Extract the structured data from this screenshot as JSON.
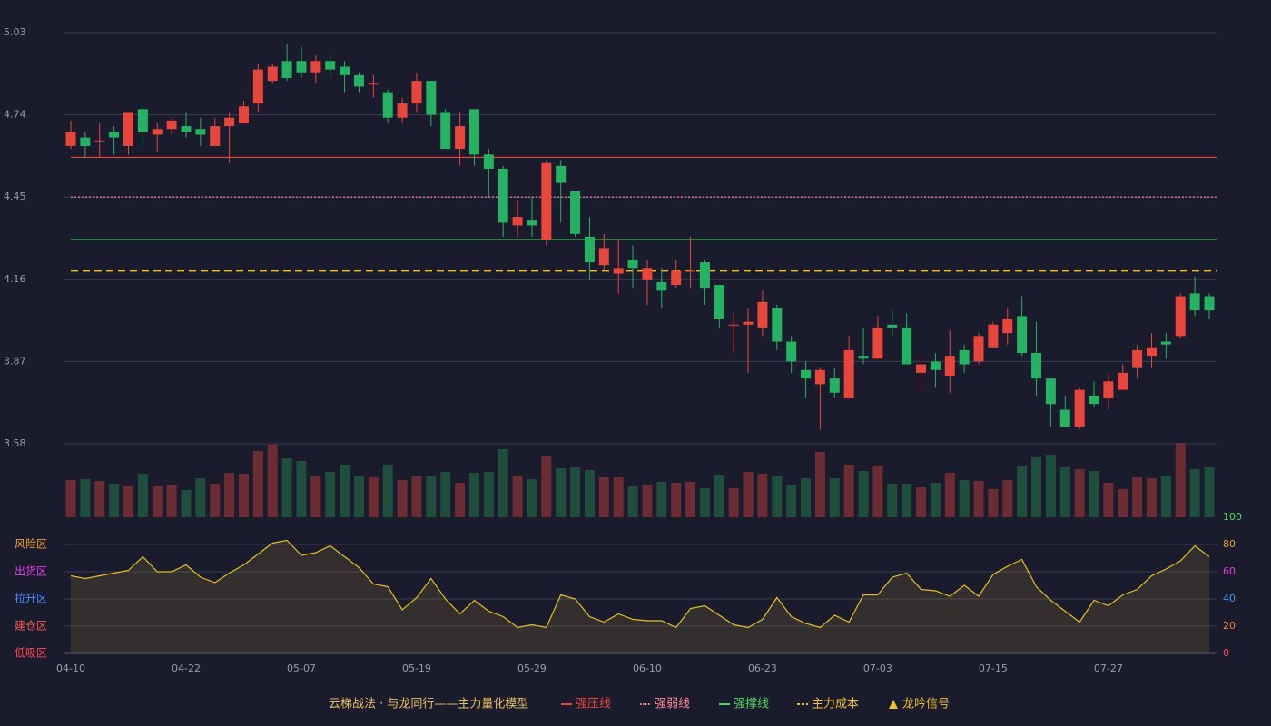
{
  "chart_data": {
    "type": "candlestick",
    "x": [
      "04-10",
      null,
      null,
      null,
      null,
      null,
      null,
      null,
      "04-22",
      null,
      null,
      null,
      null,
      null,
      null,
      null,
      "05-07",
      null,
      null,
      null,
      null,
      null,
      null,
      null,
      "05-19",
      null,
      null,
      null,
      null,
      null,
      null,
      null,
      "05-29",
      null,
      null,
      null,
      null,
      null,
      null,
      null,
      "06-10",
      null,
      null,
      null,
      null,
      null,
      null,
      null,
      "06-23",
      null,
      null,
      null,
      null,
      null,
      null,
      null,
      "07-03",
      null,
      null,
      null,
      null,
      null,
      null,
      null,
      "07-15",
      null,
      null,
      null,
      null,
      null,
      null,
      null,
      "07-27",
      null,
      null,
      null,
      null,
      null,
      null,
      null
    ],
    "open": [
      4.63,
      4.66,
      4.65,
      4.68,
      4.63,
      4.76,
      4.67,
      4.69,
      4.7,
      4.69,
      4.63,
      4.7,
      4.71,
      4.78,
      4.86,
      4.93,
      4.93,
      4.89,
      4.93,
      4.91,
      4.88,
      4.85,
      4.82,
      4.73,
      4.78,
      4.86,
      4.75,
      4.62,
      4.76,
      4.6,
      4.55,
      4.35,
      4.37,
      4.3,
      4.56,
      4.47,
      4.31,
      4.21,
      4.18,
      4.23,
      4.16,
      4.15,
      4.14,
      4.19,
      4.22,
      4.14,
      4.0,
      4.0,
      3.99,
      4.06,
      3.94,
      3.84,
      3.79,
      3.81,
      3.74,
      3.89,
      3.88,
      4.0,
      3.99,
      3.83,
      3.87,
      3.82,
      3.91,
      3.87,
      3.92,
      3.97,
      4.03,
      3.9,
      3.81,
      3.7,
      3.64,
      3.75,
      3.74,
      3.77,
      3.85,
      3.89,
      3.94,
      3.96,
      4.11,
      4.1
    ],
    "high": [
      4.72,
      4.68,
      4.71,
      4.7,
      4.75,
      4.77,
      4.71,
      4.73,
      4.75,
      4.73,
      4.73,
      4.75,
      4.79,
      4.92,
      4.92,
      4.99,
      4.98,
      4.95,
      4.95,
      4.93,
      4.89,
      4.88,
      4.83,
      4.8,
      4.89,
      4.86,
      4.76,
      4.75,
      4.76,
      4.62,
      4.56,
      4.44,
      4.45,
      4.58,
      4.58,
      4.47,
      4.38,
      4.32,
      4.3,
      4.28,
      4.23,
      4.2,
      4.23,
      4.31,
      4.23,
      4.14,
      4.04,
      4.06,
      4.12,
      4.07,
      3.96,
      3.87,
      3.85,
      3.85,
      3.96,
      3.99,
      4.03,
      4.06,
      4.04,
      3.89,
      3.9,
      3.98,
      3.93,
      3.97,
      4.01,
      4.06,
      4.1,
      4.01,
      3.81,
      3.75,
      3.78,
      3.8,
      3.83,
      3.86,
      3.93,
      3.97,
      3.97,
      4.11,
      4.17,
      4.11
    ],
    "low": [
      4.62,
      4.59,
      4.59,
      4.6,
      4.6,
      4.62,
      4.61,
      4.67,
      4.66,
      4.63,
      4.63,
      4.57,
      4.71,
      4.75,
      4.85,
      4.86,
      4.87,
      4.85,
      4.87,
      4.82,
      4.82,
      4.8,
      4.71,
      4.71,
      4.75,
      4.7,
      4.62,
      4.56,
      4.56,
      4.45,
      4.31,
      4.31,
      4.31,
      4.28,
      4.36,
      4.31,
      4.16,
      4.19,
      4.11,
      4.13,
      4.07,
      4.06,
      4.13,
      4.13,
      4.07,
      3.99,
      3.9,
      3.83,
      3.96,
      3.91,
      3.83,
      3.74,
      3.63,
      3.74,
      3.74,
      3.86,
      3.88,
      3.96,
      3.86,
      3.76,
      3.78,
      3.76,
      3.83,
      3.86,
      3.92,
      3.93,
      3.89,
      3.75,
      3.64,
      3.64,
      3.63,
      3.71,
      3.7,
      3.77,
      3.81,
      3.85,
      3.88,
      3.95,
      4.03,
      4.02
    ],
    "close": [
      4.68,
      4.63,
      4.65,
      4.66,
      4.75,
      4.68,
      4.69,
      4.72,
      4.68,
      4.67,
      4.7,
      4.73,
      4.77,
      4.9,
      4.91,
      4.87,
      4.89,
      4.93,
      4.9,
      4.88,
      4.84,
      4.85,
      4.73,
      4.78,
      4.86,
      4.74,
      4.62,
      4.7,
      4.6,
      4.55,
      4.36,
      4.38,
      4.35,
      4.57,
      4.5,
      4.32,
      4.22,
      4.27,
      4.2,
      4.2,
      4.2,
      4.12,
      4.19,
      4.19,
      4.13,
      4.02,
      4.0,
      4.01,
      4.08,
      3.94,
      3.87,
      3.81,
      3.84,
      3.76,
      3.91,
      3.88,
      3.99,
      3.99,
      3.86,
      3.86,
      3.84,
      3.89,
      3.86,
      3.96,
      4.0,
      4.02,
      3.9,
      3.81,
      3.72,
      3.64,
      3.77,
      3.72,
      3.8,
      3.83,
      3.91,
      3.92,
      3.93,
      4.1,
      4.05,
      4.05
    ],
    "up_color": "#e8453c",
    "down_color": "#25b262",
    "ylim": [
      3.58,
      5.03
    ],
    "yticks": [
      3.58,
      3.87,
      4.16,
      4.45,
      4.74,
      5.03
    ],
    "grid": true,
    "levels": [
      {
        "name": "强压线",
        "value": 4.59,
        "color": "#e8453c",
        "style": "solid"
      },
      {
        "name": "强弱线",
        "value": 4.45,
        "color": "#ff8a9a",
        "style": "dotted"
      },
      {
        "name": "强撑线",
        "value": 4.3,
        "color": "#4fd660",
        "style": "solid"
      },
      {
        "name": "主力成本",
        "value": 4.19,
        "color": "#f0c030",
        "style": "dashed"
      }
    ],
    "signal": {
      "name": "龙吟信号",
      "color": "#f0c030"
    },
    "legend_title": "云梯战法 · 与龙同行——主力量化模型",
    "volume": {
      "values": [
        41,
        42,
        40,
        37,
        35,
        48,
        35,
        36,
        30,
        43,
        37,
        49,
        48,
        73,
        80,
        65,
        62,
        45,
        50,
        58,
        45,
        44,
        58,
        41,
        45,
        45,
        50,
        38,
        49,
        50,
        75,
        46,
        42,
        68,
        54,
        55,
        52,
        44,
        44,
        34,
        36,
        39,
        38,
        39,
        32,
        47,
        32,
        50,
        48,
        45,
        36,
        43,
        72,
        43,
        58,
        51,
        57,
        37,
        37,
        33,
        38,
        49,
        41,
        40,
        31,
        41,
        56,
        66,
        69,
        55,
        53,
        51,
        38,
        31,
        44,
        43,
        46,
        82,
        53,
        55
      ],
      "up_color": "#6b2c34",
      "down_color": "#1f4e3c"
    },
    "oscillator": {
      "values": [
        57,
        55,
        57,
        59,
        61,
        71,
        60,
        60,
        65,
        56,
        52,
        59,
        65,
        73,
        81,
        83,
        72,
        74,
        79,
        71,
        63,
        51,
        49,
        32,
        41,
        55,
        40,
        29,
        39,
        31,
        27,
        19,
        21,
        19,
        43,
        40,
        27,
        23,
        29,
        25,
        24,
        24,
        19,
        33,
        35,
        28,
        21,
        19,
        25,
        41,
        27,
        22,
        19,
        28,
        23,
        43,
        43,
        56,
        59,
        47,
        46,
        42,
        50,
        42,
        58,
        64,
        69,
        49,
        39,
        31,
        23,
        39,
        35,
        43,
        47,
        57,
        62,
        68,
        79,
        71
      ],
      "color": "#e6c020",
      "ylim": [
        0,
        100
      ],
      "yticks": [
        0,
        20,
        40,
        60,
        80,
        100
      ],
      "ytick_colors": [
        "#ff4a5a",
        "#ff8040",
        "#4a90ff",
        "#e040e0",
        "#f0a030",
        "#40e060"
      ],
      "zones": [
        {
          "value": 80,
          "label": "风险区",
          "color": "#f0a030"
        },
        {
          "value": 60,
          "label": "出货区",
          "color": "#e040e0"
        },
        {
          "value": 40,
          "label": "拉升区",
          "color": "#4a90ff"
        },
        {
          "value": 20,
          "label": "建仓区",
          "color": "#ff5a50"
        },
        {
          "value": 0,
          "label": "低吸区",
          "color": "#ff4a5a"
        }
      ]
    }
  }
}
